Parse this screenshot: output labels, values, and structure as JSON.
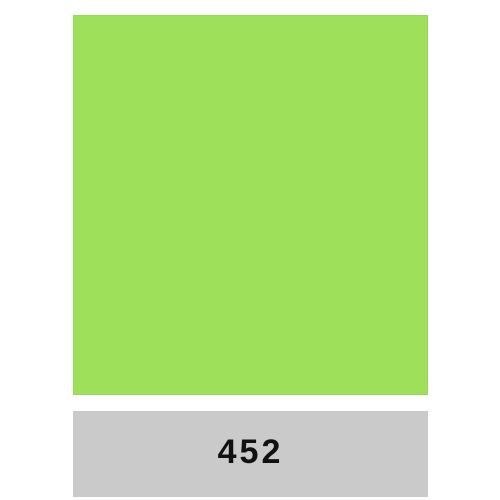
{
  "swatch": {
    "color": "#9fe05a",
    "code": "452"
  },
  "label_band_color": "#cacaca"
}
